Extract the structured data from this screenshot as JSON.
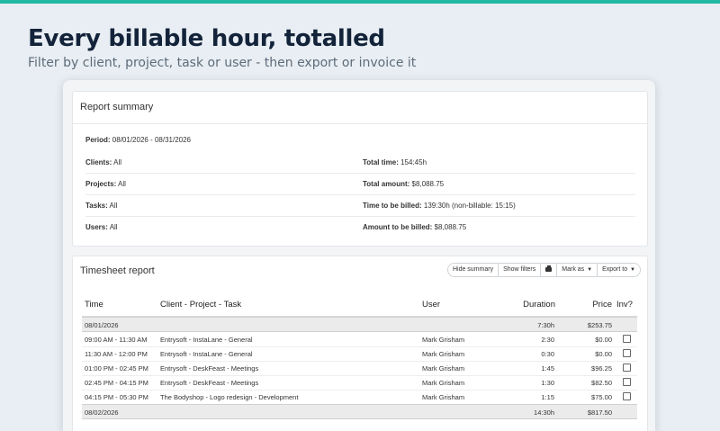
{
  "headline": "Every billable hour, totalled",
  "subline": "Filter by client, project, task or user - then export or invoice it",
  "colors": {
    "accent": "#22b8a1",
    "headline": "#13233a"
  },
  "summary": {
    "title": "Report summary",
    "period_label": "Period:",
    "period_value": "08/01/2026 - 08/31/2026",
    "left": [
      {
        "label": "Clients:",
        "value": "All"
      },
      {
        "label": "Projects:",
        "value": "All"
      },
      {
        "label": "Tasks:",
        "value": "All"
      },
      {
        "label": "Users:",
        "value": "All"
      }
    ],
    "right": [
      {
        "label": "Total time:",
        "value": "154:45h"
      },
      {
        "label": "Total amount:",
        "value": "$8,088.75"
      },
      {
        "label": "Time to be billed:",
        "value": "139:30h (non-billable: 15:15)"
      },
      {
        "label": "Amount to be billed:",
        "value": "$8,088.75"
      }
    ]
  },
  "timesheet": {
    "title": "Timesheet report",
    "buttons": {
      "hide_summary": "Hide summary",
      "show_filters": "Show filters",
      "print_icon": "printer-icon",
      "mark_as": "Mark as",
      "export_to": "Export to"
    },
    "columns": {
      "time": "Time",
      "cpt": "Client - Project - Task",
      "user": "User",
      "duration": "Duration",
      "price": "Price",
      "inv": "Inv?"
    },
    "days": [
      {
        "date": "08/01/2026",
        "duration": "7:30h",
        "price": "$253.75",
        "entries": [
          {
            "time": "09:00 AM - 11:30 AM",
            "cpt": "Entrysoft - InstaLane - General",
            "user": "Mark Grisham",
            "duration": "2:30",
            "price": "$0.00"
          },
          {
            "time": "11:30 AM - 12:00 PM",
            "cpt": "Entrysoft - InstaLane - General",
            "user": "Mark Grisham",
            "duration": "0:30",
            "price": "$0.00"
          },
          {
            "time": "01:00 PM - 02:45 PM",
            "cpt": "Entrysoft - DeskFeast - Meetings",
            "user": "Mark Grisham",
            "duration": "1:45",
            "price": "$96.25"
          },
          {
            "time": "02:45 PM - 04:15 PM",
            "cpt": "Entrysoft - DeskFeast - Meetings",
            "user": "Mark Grisham",
            "duration": "1:30",
            "price": "$82.50"
          },
          {
            "time": "04:15 PM - 05:30 PM",
            "cpt": "The Bodyshop - Logo redesign - Development",
            "user": "Mark Grisham",
            "duration": "1:15",
            "price": "$75.00"
          }
        ]
      },
      {
        "date": "08/02/2026",
        "duration": "14:30h",
        "price": "$817.50",
        "entries": []
      }
    ]
  }
}
